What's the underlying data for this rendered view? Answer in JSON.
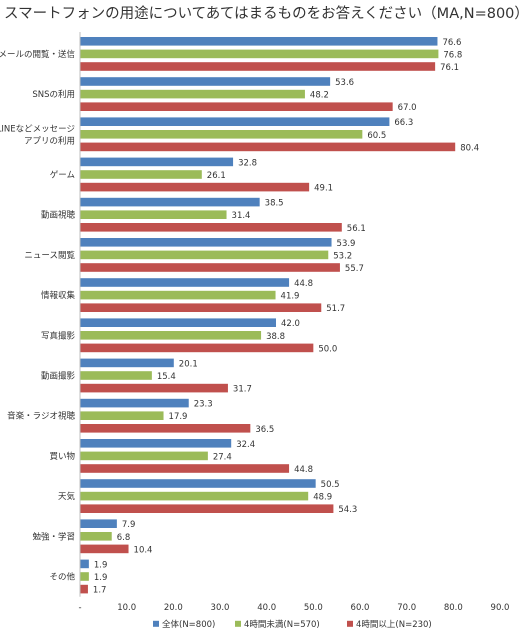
{
  "chart_data": {
    "type": "bar",
    "orientation": "horizontal",
    "title": "スマートフォンの用途についてあてはまるものをお答えください（MA,N=800）",
    "categories": [
      [
        "メールの閲覧・送信"
      ],
      [
        "SNSの利用"
      ],
      [
        "LINEなどメッセージ",
        "アプリの利用"
      ],
      [
        "ゲーム"
      ],
      [
        "動画視聴"
      ],
      [
        "ニュース閲覧"
      ],
      [
        "情報収集"
      ],
      [
        "写真撮影"
      ],
      [
        "動画撮影"
      ],
      [
        "音楽・ラジオ視聴"
      ],
      [
        "買い物"
      ],
      [
        "天気"
      ],
      [
        "勉強・学習"
      ],
      [
        "その他"
      ]
    ],
    "series": [
      {
        "name": "全体(N=800)",
        "color": "#4f81bd",
        "values": [
          76.6,
          53.6,
          66.3,
          32.8,
          38.5,
          53.9,
          44.8,
          42.0,
          20.1,
          23.3,
          32.4,
          50.5,
          7.9,
          1.9
        ]
      },
      {
        "name": "4時間未満(N=570)",
        "color": "#9bbb59",
        "values": [
          76.8,
          48.2,
          60.5,
          26.1,
          31.4,
          53.2,
          41.9,
          38.8,
          15.4,
          17.9,
          27.4,
          48.9,
          6.8,
          1.9
        ]
      },
      {
        "name": "4時間以上(N=230)",
        "color": "#c0504d",
        "values": [
          76.1,
          67.0,
          80.4,
          49.1,
          56.1,
          55.7,
          51.7,
          50.0,
          31.7,
          36.5,
          44.8,
          54.3,
          10.4,
          1.7
        ]
      }
    ],
    "xlim": [
      0,
      90
    ],
    "xticks": [
      "-",
      "10.0",
      "20.0",
      "30.0",
      "40.0",
      "50.0",
      "60.0",
      "70.0",
      "80.0",
      "90.0"
    ],
    "legend_position": "bottom",
    "grid": false
  }
}
